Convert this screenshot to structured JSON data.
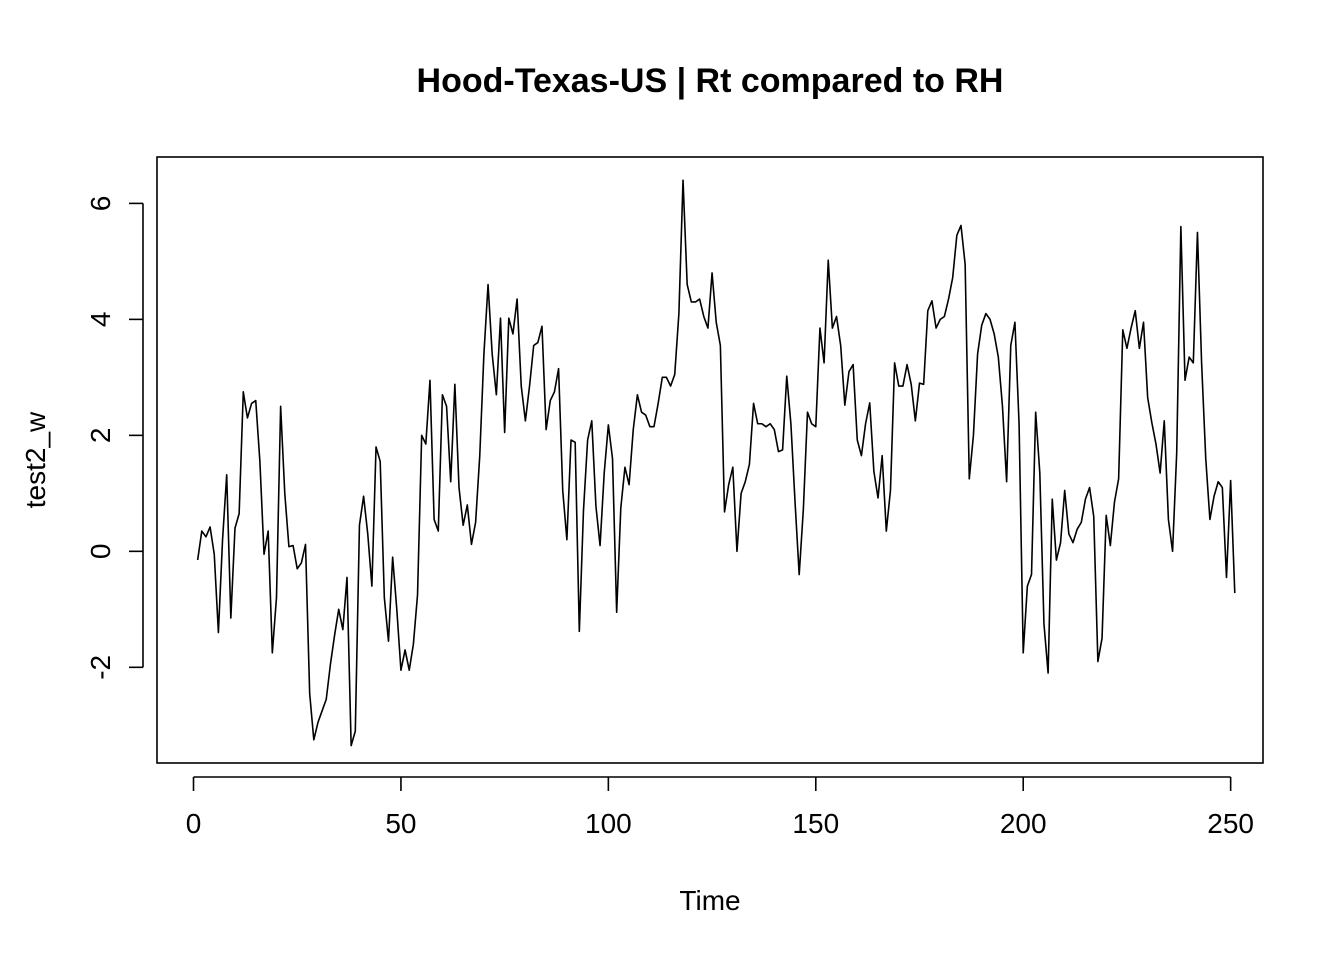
{
  "chart_data": {
    "type": "line",
    "title": "Hood-Texas-US | Rt compared to RH",
    "xlabel": "Time",
    "ylabel": "test2_w",
    "xlim": [
      -8.8,
      257.8
    ],
    "ylim": [
      -3.65,
      6.8
    ],
    "xticks": [
      0,
      50,
      100,
      150,
      200,
      250
    ],
    "yticks": [
      -2,
      0,
      2,
      4,
      6
    ],
    "xtick_labels": [
      "0",
      "50",
      "100",
      "150",
      "200",
      "250"
    ],
    "ytick_labels": [
      "-2",
      "0",
      "2",
      "4",
      "6"
    ],
    "grid": false,
    "line_color": "#000000",
    "series": [
      {
        "x_start": 1,
        "values": [
          -0.15,
          0.35,
          0.25,
          0.42,
          -0.05,
          -1.4,
          0.2,
          1.32,
          -1.15,
          0.4,
          0.65,
          2.75,
          2.3,
          2.55,
          2.6,
          1.55,
          -0.05,
          0.35,
          -1.75,
          -0.8,
          2.5,
          1.0,
          0.08,
          0.1,
          -0.3,
          -0.2,
          0.12,
          -2.45,
          -3.25,
          -2.95,
          -2.75,
          -2.55,
          -1.95,
          -1.45,
          -1.0,
          -1.35,
          -0.45,
          -3.35,
          -3.1,
          0.45,
          0.95,
          0.3,
          -0.6,
          1.8,
          1.55,
          -0.8,
          -1.55,
          -0.1,
          -1.0,
          -2.05,
          -1.7,
          -2.05,
          -1.6,
          -0.75,
          2.0,
          1.85,
          2.95,
          0.55,
          0.35,
          2.7,
          2.5,
          1.2,
          2.88,
          1.1,
          0.45,
          0.8,
          0.12,
          0.5,
          1.65,
          3.4,
          4.6,
          3.4,
          2.7,
          4.02,
          2.05,
          4.02,
          3.75,
          4.35,
          2.85,
          2.25,
          2.85,
          3.55,
          3.6,
          3.88,
          2.1,
          2.6,
          2.75,
          3.15,
          1.05,
          0.2,
          1.92,
          1.88,
          -1.38,
          0.7,
          1.92,
          2.25,
          0.78,
          0.1,
          1.35,
          2.18,
          1.6,
          -1.05,
          0.75,
          1.45,
          1.15,
          2.1,
          2.7,
          2.4,
          2.35,
          2.15,
          2.15,
          2.55,
          3.0,
          3.0,
          2.85,
          3.05,
          4.1,
          6.4,
          4.6,
          4.3,
          4.3,
          4.35,
          4.05,
          3.85,
          4.8,
          3.95,
          3.55,
          0.68,
          1.15,
          1.45,
          0.0,
          1.0,
          1.2,
          1.5,
          2.55,
          2.2,
          2.2,
          2.15,
          2.2,
          2.1,
          1.72,
          1.75,
          3.02,
          2.2,
          0.85,
          -0.4,
          0.72,
          2.4,
          2.2,
          2.15,
          3.85,
          3.25,
          5.02,
          3.85,
          4.05,
          3.55,
          2.52,
          3.1,
          3.22,
          1.92,
          1.65,
          2.2,
          2.56,
          1.38,
          0.92,
          1.65,
          0.35,
          1.05,
          3.25,
          2.85,
          2.85,
          3.22,
          2.88,
          2.25,
          2.9,
          2.88,
          4.15,
          4.32,
          3.85,
          4.0,
          4.05,
          4.35,
          4.72,
          5.45,
          5.62,
          4.95,
          1.25,
          2.0,
          3.4,
          3.9,
          4.1,
          4.0,
          3.75,
          3.35,
          2.5,
          1.2,
          3.55,
          3.95,
          2.2,
          -1.75,
          -0.6,
          -0.4,
          2.4,
          1.35,
          -1.25,
          -2.1,
          0.9,
          -0.15,
          0.15,
          1.05,
          0.3,
          0.15,
          0.38,
          0.5,
          0.9,
          1.1,
          0.6,
          -1.9,
          -1.5,
          0.62,
          0.1,
          0.85,
          1.25,
          3.82,
          3.5,
          3.85,
          4.15,
          3.5,
          3.95,
          2.65,
          2.22,
          1.85,
          1.35,
          2.25,
          0.55,
          0.0,
          1.7,
          5.6,
          2.95,
          3.35,
          3.25,
          5.5,
          3.25,
          1.6,
          0.55,
          0.95,
          1.2,
          1.1,
          -0.45,
          1.22,
          -0.72
        ]
      }
    ]
  }
}
